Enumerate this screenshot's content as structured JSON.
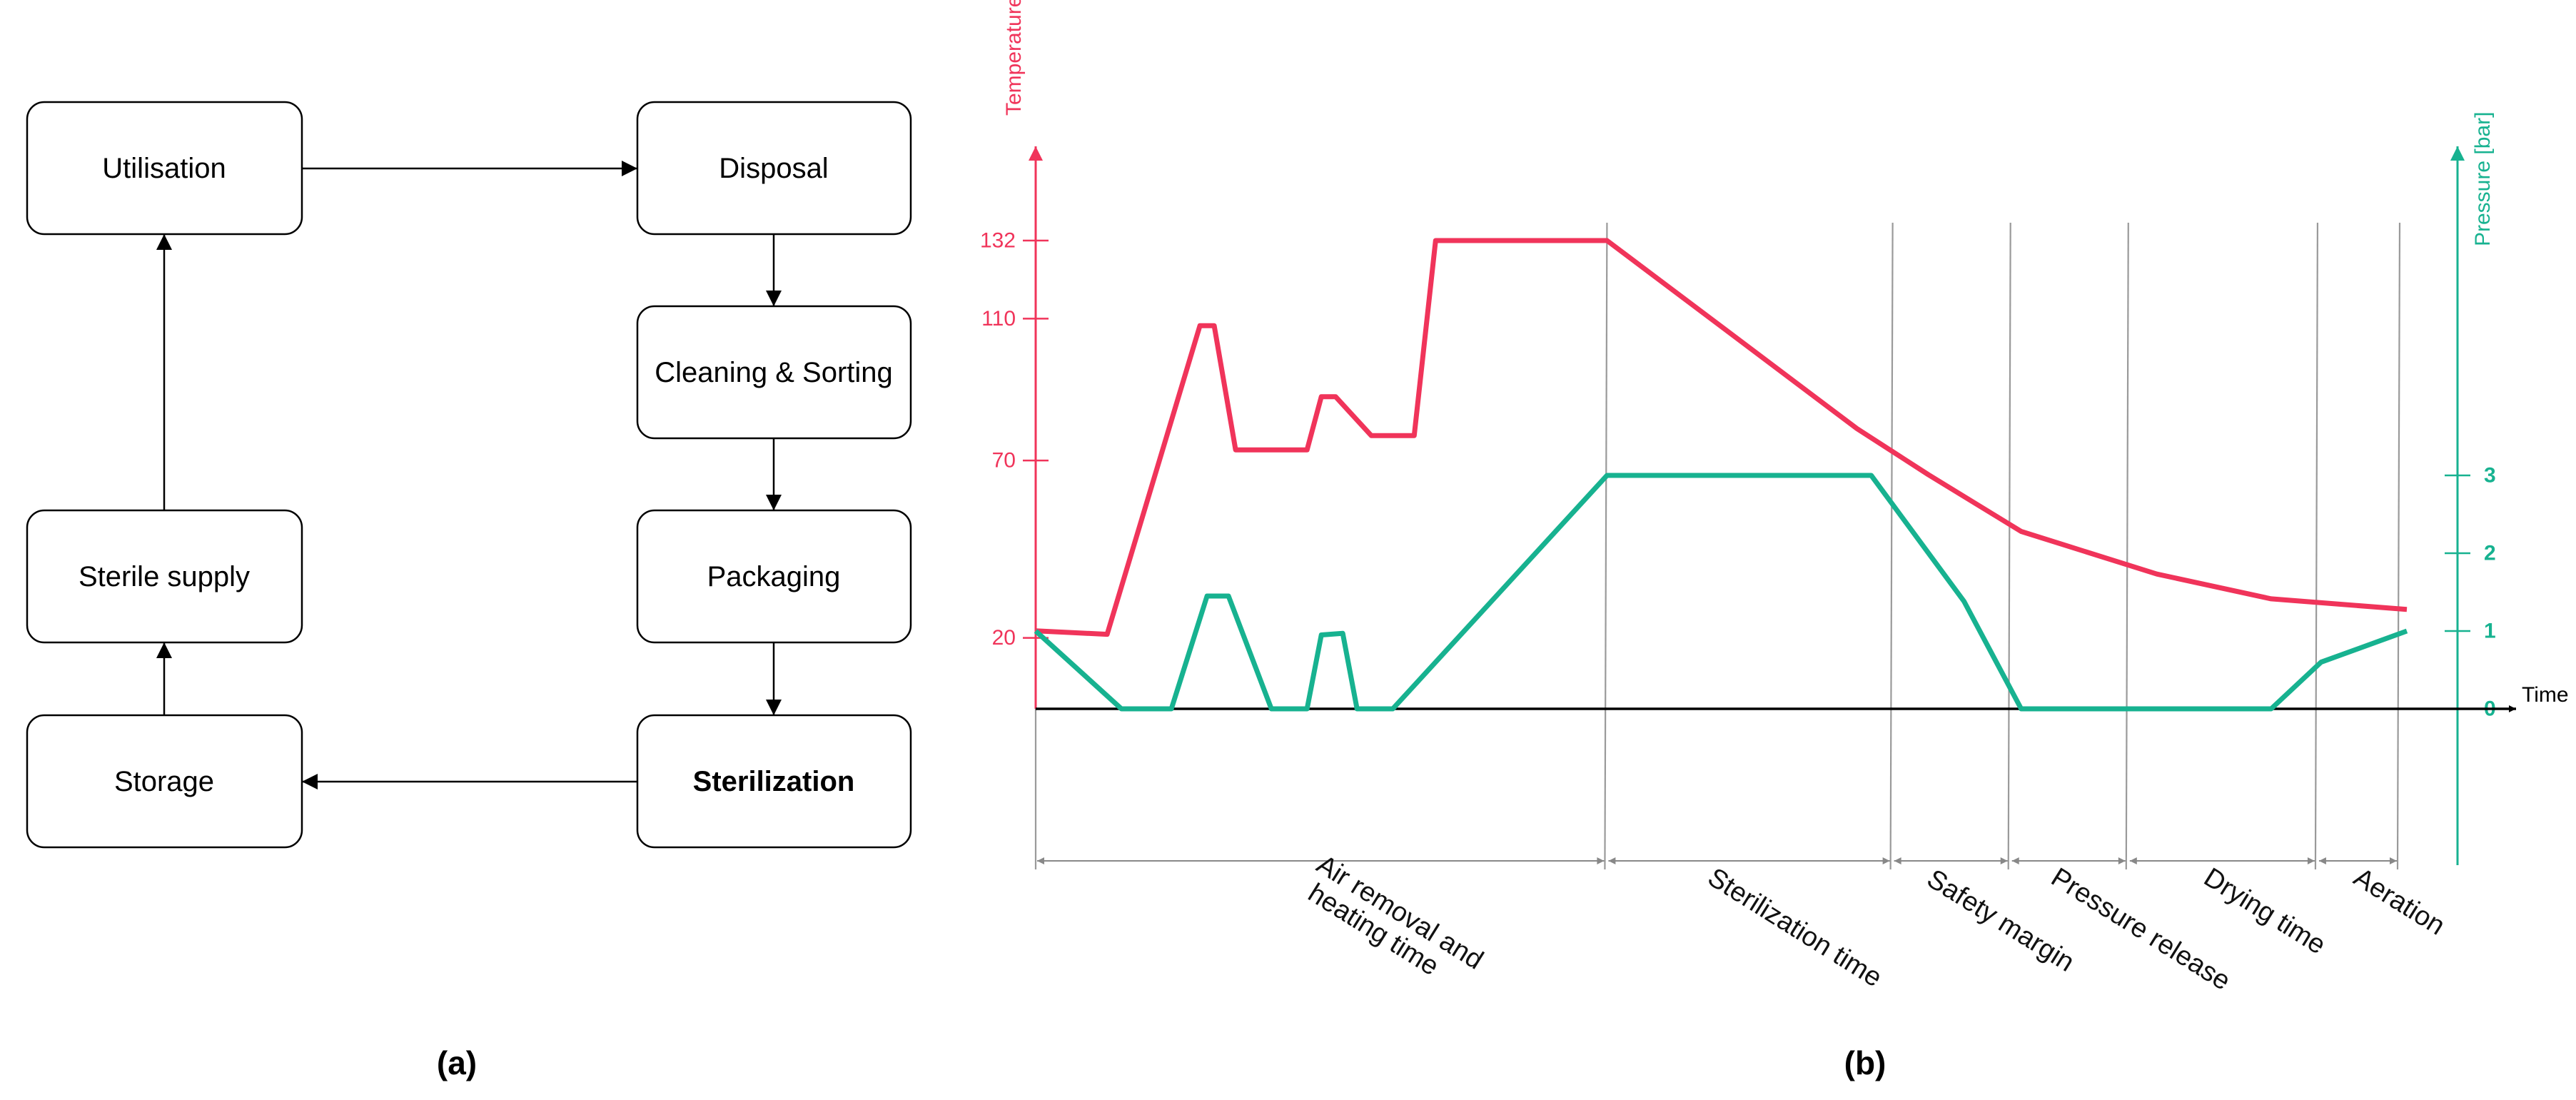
{
  "flowchart": {
    "nodes": {
      "utilisation": "Utilisation",
      "disposal": "Disposal",
      "cleaning": "Cleaning & Sorting",
      "sterile_supply": "Sterile supply",
      "packaging": "Packaging",
      "storage": "Storage",
      "sterilization": "Sterilization"
    },
    "panel_label": "(a)"
  },
  "chart": {
    "panel_label": "(b)",
    "colors": {
      "temperature": "#f0345a",
      "pressure": "#17b290",
      "axis": "#000000",
      "phase_line": "#9a9a9a"
    },
    "left_axis_label": "Temperature [ºC]",
    "right_axis_label": "Pressure [bar]",
    "x_axis_label": "Time",
    "left_ticks": [
      "132",
      "110",
      "70",
      "20"
    ],
    "right_ticks": [
      "3",
      "2",
      "1",
      "0"
    ],
    "phases": [
      "Air removal and",
      "heating time",
      "Sterilization time",
      "Safety margin",
      "Pressure release",
      "Drying time",
      "Aeration"
    ]
  },
  "chart_data": {
    "type": "line",
    "title": "",
    "xlabel": "Time",
    "ylabel": "Temperature [ºC]",
    "y2label": "Pressure [bar]",
    "ylim": [
      0,
      132
    ],
    "y2lim": [
      0,
      3
    ],
    "y_ticks": [
      20,
      70,
      110,
      132
    ],
    "y2_ticks": [
      0,
      1,
      2,
      3
    ],
    "grid": false,
    "series": [
      {
        "name": "Temperature [ºC]",
        "axis": "left",
        "x": [
          0,
          10,
          23,
          25,
          28,
          38,
          40,
          42,
          47,
          53,
          56,
          57,
          64,
          70,
          80,
          115,
          125,
          138,
          157,
          173,
          192
        ],
        "y": [
          22,
          21,
          108,
          108,
          73,
          73,
          88,
          88,
          77,
          77,
          132,
          132,
          132,
          132,
          132,
          79,
          66,
          50,
          38,
          31,
          28
        ]
      },
      {
        "name": "Pressure [bar]",
        "axis": "right",
        "x": [
          0,
          12,
          19,
          24,
          27,
          33,
          38,
          40,
          43,
          45,
          50,
          80,
          113,
          117,
          130,
          138,
          158,
          173,
          180,
          192
        ],
        "y": [
          1,
          0,
          0,
          1.45,
          1.45,
          0,
          0,
          0.95,
          0.97,
          0,
          0,
          3,
          3,
          3,
          1.38,
          0,
          0,
          0,
          0.6,
          1
        ]
      }
    ],
    "phases": [
      {
        "label": "Air removal and heating time"
      },
      {
        "label": "Sterilization time"
      },
      {
        "label": "Safety margin"
      },
      {
        "label": "Pressure release"
      },
      {
        "label": "Drying time"
      },
      {
        "label": "Aeration"
      }
    ]
  }
}
